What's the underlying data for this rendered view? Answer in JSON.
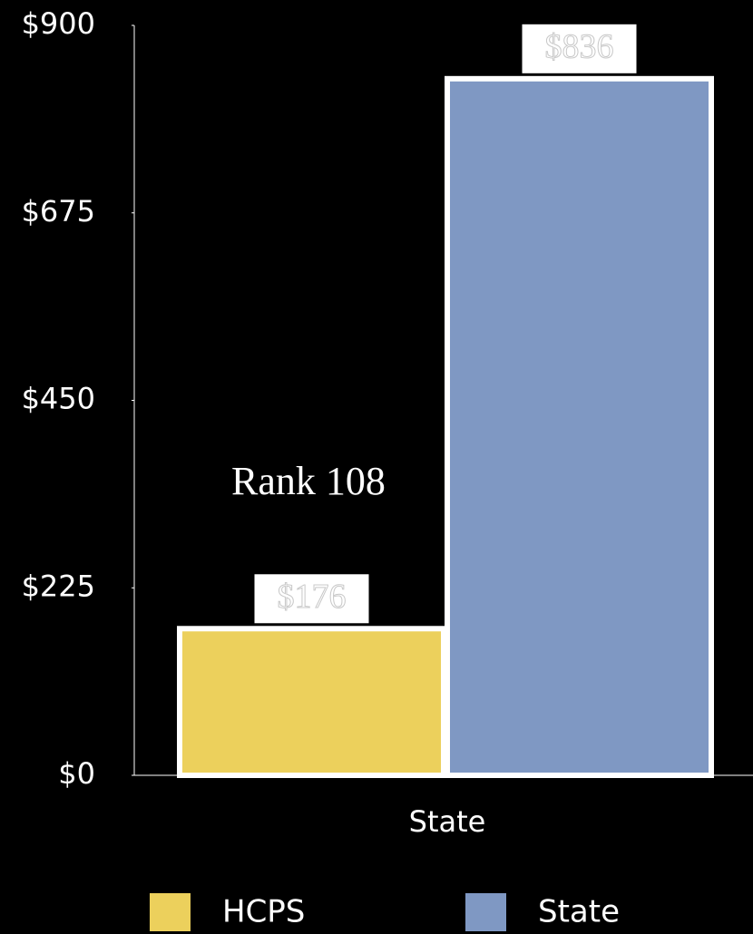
{
  "chart_data": {
    "type": "bar",
    "categories": [
      "State"
    ],
    "series": [
      {
        "name": "HCPS",
        "color": "#ecd05c",
        "values": [
          176
        ],
        "value_labels": [
          "$176"
        ]
      },
      {
        "name": "State",
        "color": "#7f98c3",
        "values": [
          836
        ],
        "value_labels": [
          "$836"
        ]
      }
    ],
    "ylim": [
      0,
      900
    ],
    "yticks": [
      {
        "value": 0,
        "label": "$0"
      },
      {
        "value": 225,
        "label": "$225"
      },
      {
        "value": 450,
        "label": "$450"
      },
      {
        "value": 675,
        "label": "$675"
      },
      {
        "value": 900,
        "label": "$900"
      }
    ],
    "annotation": "Rank 108",
    "grid": false
  }
}
